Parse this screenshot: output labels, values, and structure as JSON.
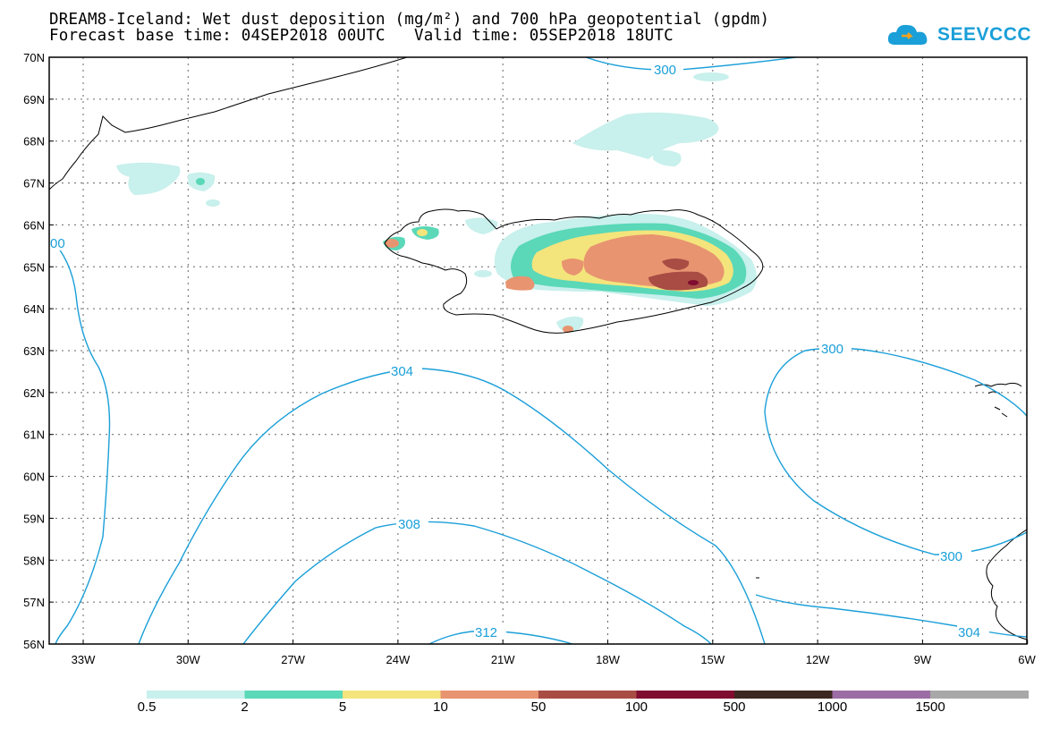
{
  "title": {
    "line1": "DREAM8-Iceland: Wet dust deposition (mg/m²) and 700 hPa geopotential (gpdm)",
    "line2": "Forecast base time: 04SEP2018 00UTC   Valid time: 05SEP2018 18UTC"
  },
  "logo": {
    "text": "SEEVCCC",
    "icon": "cloud-icon",
    "color": "#1a9fd8"
  },
  "map": {
    "lat_labels": [
      "70N",
      "69N",
      "68N",
      "67N",
      "66N",
      "65N",
      "64N",
      "63N",
      "62N",
      "61N",
      "60N",
      "59N",
      "58N",
      "57N",
      "56N"
    ],
    "lon_labels": [
      "33W",
      "30W",
      "27W",
      "24W",
      "21W",
      "18W",
      "15W",
      "12W",
      "9W",
      "6W"
    ],
    "contour_color": "#1a9fd8",
    "contour_labels": [
      "300",
      "00",
      "304",
      "300",
      "308",
      "300",
      "304",
      "312"
    ]
  },
  "colorbar": {
    "colors": [
      "#c8f0ec",
      "#5ad8b8",
      "#f4e47c",
      "#e89470",
      "#a84c44",
      "#800c30",
      "#3c2820",
      "#9c6ca4",
      "#a8a8a8"
    ],
    "labels": [
      "0.5",
      "2",
      "5",
      "10",
      "50",
      "100",
      "500",
      "1000",
      "1500"
    ]
  }
}
